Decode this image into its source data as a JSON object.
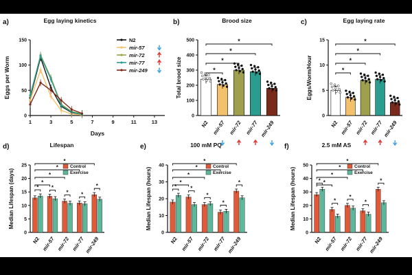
{
  "colors": {
    "N2": "#111111",
    "mir-57": "#f3c16b",
    "mir-72": "#9ea04e",
    "mir-77": "#2a9d8f",
    "mir-249": "#7a2a1a",
    "control": "#e05a3a",
    "exercise": "#5fb79b",
    "up": "#e0322b",
    "down": "#3aa0e0"
  },
  "chart_data": [
    {
      "id": "a",
      "type": "line",
      "panel_label": "a)",
      "title": "Egg laying kinetics",
      "xlabel": "Days",
      "ylabel": "Eggs per Worm",
      "xlim": [
        1,
        14
      ],
      "ylim": [
        0,
        150
      ],
      "xticks": [
        "1",
        "3",
        "5",
        "7",
        "9",
        "11",
        "13"
      ],
      "yticks": [
        "0",
        "50",
        "100",
        "150"
      ],
      "x": [
        1,
        2,
        3,
        4,
        5,
        6
      ],
      "series": [
        {
          "name": "N2",
          "values": [
            35,
            115,
            55,
            18,
            6,
            2
          ],
          "arrow": "",
          "italic": false
        },
        {
          "name": "mir-57",
          "values": [
            30,
            90,
            38,
            10,
            3,
            1
          ],
          "arrow": "down",
          "italic": true
        },
        {
          "name": "mir-72",
          "values": [
            38,
            120,
            75,
            22,
            8,
            3
          ],
          "arrow": "up",
          "italic": true
        },
        {
          "name": "mir-77",
          "values": [
            40,
            118,
            72,
            20,
            7,
            2
          ],
          "arrow": "up",
          "italic": true
        },
        {
          "name": "mir-249",
          "values": [
            22,
            65,
            50,
            30,
            12,
            4
          ],
          "arrow": "down",
          "italic": true
        }
      ]
    },
    {
      "id": "b",
      "type": "bar",
      "panel_label": "b)",
      "title": "Brood size",
      "ylabel": "Total brood size",
      "ylim": [
        0,
        500
      ],
      "yticks": [
        "0",
        "100",
        "200",
        "300",
        "400",
        "500"
      ],
      "categories": [
        "N2",
        "mir-57",
        "mir-72",
        "mir-77",
        "mir-249"
      ],
      "values": [
        240,
        205,
        300,
        290,
        180
      ],
      "arrows": [
        "",
        "down",
        "up",
        "up",
        "down"
      ],
      "significance": "*"
    },
    {
      "id": "c",
      "type": "bar",
      "panel_label": "c)",
      "title": "Egg laying rate",
      "ylabel": "Eggs/Worm/Hour",
      "ylim": [
        0,
        15
      ],
      "yticks": [
        "0",
        "5",
        "10",
        "15"
      ],
      "categories": [
        "N2",
        "mir-57",
        "mir-72",
        "mir-77",
        "mir-249"
      ],
      "values": [
        5,
        3.6,
        7,
        7.2,
        2.6
      ],
      "arrows": [
        "",
        "",
        "up",
        "up",
        "down"
      ],
      "significance": "*"
    },
    {
      "id": "d",
      "type": "bar",
      "panel_label": "d)",
      "title": "Lifespan",
      "ylabel": "Median Lifespan (days)",
      "ylim": [
        0,
        25
      ],
      "yticks": [
        "0",
        "5",
        "10",
        "15",
        "20",
        "25"
      ],
      "categories": [
        "N2",
        "mir-57",
        "mir-72",
        "mir-77",
        "mir-249"
      ],
      "series": [
        {
          "name": "Control",
          "values": [
            12.8,
            13.4,
            11.6,
            10.9,
            14.0
          ]
        },
        {
          "name": "Exercise",
          "values": [
            13.5,
            12.5,
            10.8,
            10.6,
            12.3
          ]
        }
      ],
      "significance": "*"
    },
    {
      "id": "e",
      "type": "bar",
      "panel_label": "e)",
      "title": "100 mM PQ",
      "ylabel": "Median Lifespan (hours)",
      "ylim": [
        0,
        40
      ],
      "yticks": [
        "0",
        "10",
        "20",
        "30",
        "40"
      ],
      "categories": [
        "N2",
        "mir-57",
        "mir-72",
        "mir-77",
        "mir-249"
      ],
      "series": [
        {
          "name": "Control",
          "values": [
            18,
            21,
            16.5,
            12,
            24.5
          ]
        },
        {
          "name": "Exercise",
          "values": [
            22,
            16.5,
            17,
            12.5,
            20.5
          ]
        }
      ],
      "significance": "*"
    },
    {
      "id": "f",
      "type": "bar",
      "panel_label": "f)",
      "title": "2.5 mM AS",
      "ylabel": "Median Lifespan (hours)",
      "ylim": [
        0,
        50
      ],
      "yticks": [
        "0",
        "10",
        "20",
        "30",
        "40",
        "50"
      ],
      "categories": [
        "N2",
        "mir-57",
        "mir-72",
        "mir-77",
        "mir-249"
      ],
      "series": [
        {
          "name": "Control",
          "values": [
            28,
            17,
            20,
            16,
            32
          ]
        },
        {
          "name": "Exercise",
          "values": [
            32,
            12,
            18,
            13.5,
            22
          ]
        }
      ],
      "significance": "*"
    }
  ]
}
